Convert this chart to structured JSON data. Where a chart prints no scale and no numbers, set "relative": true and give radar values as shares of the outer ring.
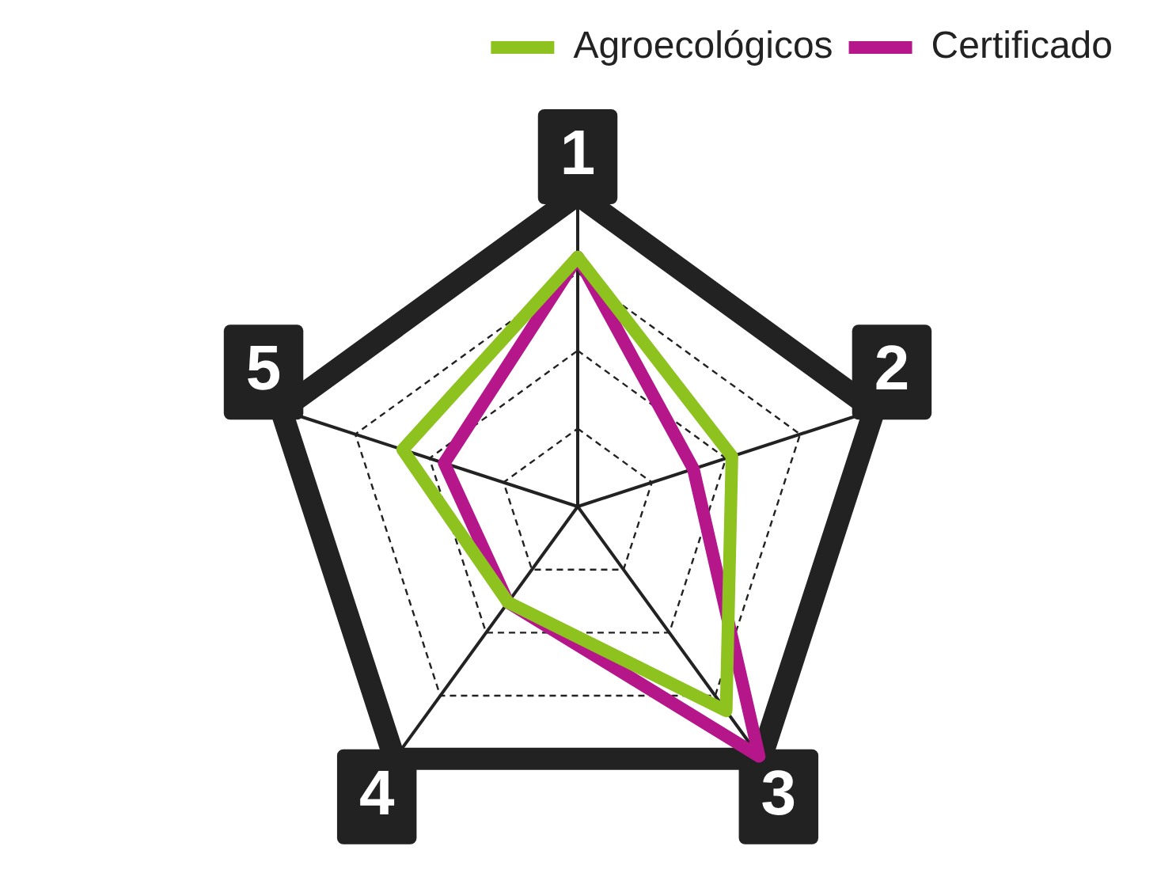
{
  "chart_data": {
    "type": "radar",
    "relative": true,
    "categories": [
      "1",
      "2",
      "3",
      "4",
      "5"
    ],
    "legend": "top right",
    "series": [
      {
        "name": "Agroecológicos",
        "color": "#8dc21f",
        "values": [
          0.8,
          0.52,
          0.81,
          0.38,
          0.59
        ]
      },
      {
        "name": "Certificado",
        "color": "#b5178b",
        "values": [
          0.8,
          0.39,
          0.99,
          0.38,
          0.45
        ]
      }
    ]
  }
}
